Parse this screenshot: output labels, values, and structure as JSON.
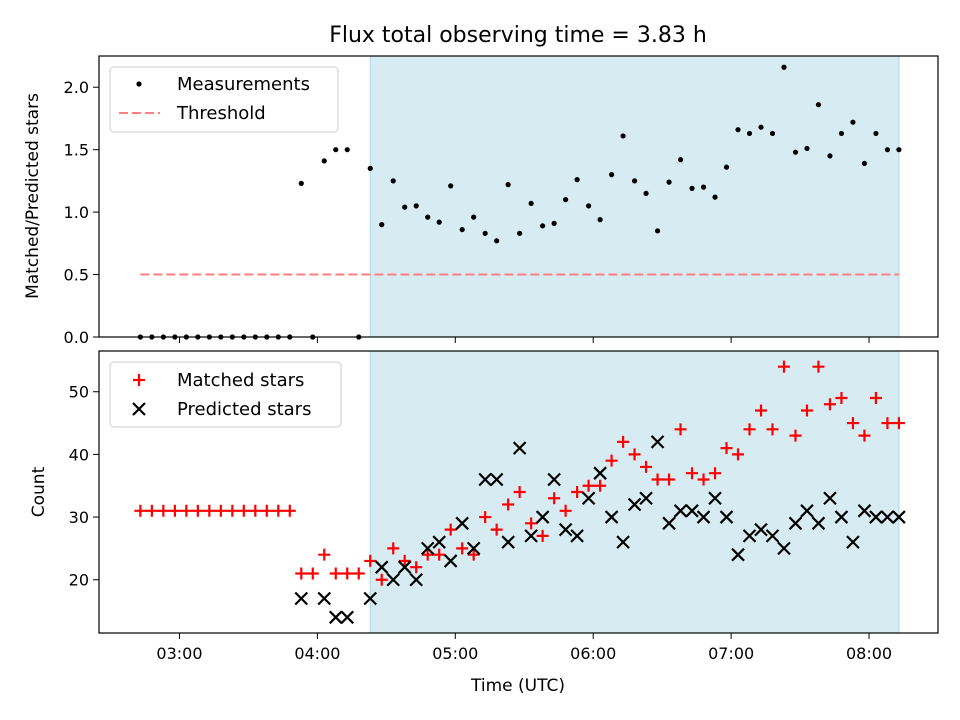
{
  "chart_data": [
    {
      "type": "scatter",
      "title": "Flux total observing time = 3.83 h",
      "xlabel": "",
      "ylabel": "Matched/Predicted stars",
      "xlim": [
        "02:25",
        "08:30"
      ],
      "ylim": [
        0,
        2.25
      ],
      "yticks": [
        "0.0",
        "0.5",
        "1.0",
        "1.5",
        "2.0"
      ],
      "grid": false,
      "legend_position": "top-left",
      "shaded_span": [
        "04:23",
        "08:13"
      ],
      "shade_color": "#add8e6",
      "series": [
        {
          "name": "Measurements",
          "marker": "dot",
          "color": "#000000",
          "points": [
            [
              "02:43",
              0.0
            ],
            [
              "02:48",
              0.0
            ],
            [
              "02:53",
              0.0
            ],
            [
              "02:58",
              0.0
            ],
            [
              "03:03",
              0.0
            ],
            [
              "03:08",
              0.0
            ],
            [
              "03:13",
              0.0
            ],
            [
              "03:18",
              0.0
            ],
            [
              "03:23",
              0.0
            ],
            [
              "03:28",
              0.0
            ],
            [
              "03:33",
              0.0
            ],
            [
              "03:38",
              0.0
            ],
            [
              "03:43",
              0.0
            ],
            [
              "03:48",
              0.0
            ],
            [
              "03:53",
              1.23
            ],
            [
              "03:58",
              0.0
            ],
            [
              "04:03",
              1.41
            ],
            [
              "04:08",
              1.5
            ],
            [
              "04:13",
              1.5
            ],
            [
              "04:18",
              0.0
            ],
            [
              "04:23",
              1.35
            ],
            [
              "04:28",
              0.9
            ],
            [
              "04:33",
              1.25
            ],
            [
              "04:38",
              1.04
            ],
            [
              "04:43",
              1.05
            ],
            [
              "04:48",
              0.96
            ],
            [
              "04:53",
              0.92
            ],
            [
              "04:58",
              1.21
            ],
            [
              "05:03",
              0.86
            ],
            [
              "05:08",
              0.96
            ],
            [
              "05:13",
              0.83
            ],
            [
              "05:18",
              0.77
            ],
            [
              "05:23",
              1.22
            ],
            [
              "05:28",
              0.83
            ],
            [
              "05:33",
              1.07
            ],
            [
              "05:38",
              0.89
            ],
            [
              "05:43",
              0.91
            ],
            [
              "05:48",
              1.1
            ],
            [
              "05:53",
              1.26
            ],
            [
              "05:58",
              1.05
            ],
            [
              "06:03",
              0.94
            ],
            [
              "06:08",
              1.3
            ],
            [
              "06:13",
              1.61
            ],
            [
              "06:18",
              1.25
            ],
            [
              "06:23",
              1.15
            ],
            [
              "06:28",
              0.85
            ],
            [
              "06:33",
              1.24
            ],
            [
              "06:38",
              1.42
            ],
            [
              "06:43",
              1.19
            ],
            [
              "06:48",
              1.2
            ],
            [
              "06:53",
              1.12
            ],
            [
              "06:58",
              1.36
            ],
            [
              "07:03",
              1.66
            ],
            [
              "07:08",
              1.63
            ],
            [
              "07:13",
              1.68
            ],
            [
              "07:18",
              1.63
            ],
            [
              "07:23",
              2.16
            ],
            [
              "07:28",
              1.48
            ],
            [
              "07:33",
              1.51
            ],
            [
              "07:38",
              1.86
            ],
            [
              "07:43",
              1.45
            ],
            [
              "07:48",
              1.63
            ],
            [
              "07:53",
              1.72
            ],
            [
              "07:58",
              1.39
            ],
            [
              "08:03",
              1.63
            ],
            [
              "08:08",
              1.5
            ],
            [
              "08:13",
              1.5
            ]
          ]
        },
        {
          "name": "Threshold",
          "marker": "dashed-line",
          "color": "#ff7f7f",
          "points": [
            [
              "02:43",
              0.5
            ],
            [
              "08:13",
              0.5
            ]
          ]
        }
      ]
    },
    {
      "type": "scatter",
      "title": "",
      "xlabel": "Time (UTC)",
      "ylabel": "Count",
      "xlim": [
        "02:25",
        "08:30"
      ],
      "ylim": [
        11.5,
        56.5
      ],
      "yticks": [
        "20",
        "30",
        "40",
        "50"
      ],
      "xticks": [
        "03:00",
        "04:00",
        "05:00",
        "06:00",
        "07:00",
        "08:00"
      ],
      "grid": false,
      "legend_position": "top-left",
      "shaded_span": [
        "04:23",
        "08:13"
      ],
      "shade_color": "#add8e6",
      "series": [
        {
          "name": "Matched stars",
          "marker": "plus",
          "color": "#ff0000",
          "points": [
            [
              "02:43",
              31
            ],
            [
              "02:48",
              31
            ],
            [
              "02:53",
              31
            ],
            [
              "02:58",
              31
            ],
            [
              "03:03",
              31
            ],
            [
              "03:08",
              31
            ],
            [
              "03:13",
              31
            ],
            [
              "03:18",
              31
            ],
            [
              "03:23",
              31
            ],
            [
              "03:28",
              31
            ],
            [
              "03:33",
              31
            ],
            [
              "03:38",
              31
            ],
            [
              "03:43",
              31
            ],
            [
              "03:48",
              31
            ],
            [
              "03:53",
              21
            ],
            [
              "03:58",
              21
            ],
            [
              "04:03",
              24
            ],
            [
              "04:08",
              21
            ],
            [
              "04:13",
              21
            ],
            [
              "04:18",
              21
            ],
            [
              "04:23",
              23
            ],
            [
              "04:28",
              20
            ],
            [
              "04:33",
              25
            ],
            [
              "04:38",
              23
            ],
            [
              "04:43",
              22
            ],
            [
              "04:48",
              24
            ],
            [
              "04:53",
              24
            ],
            [
              "04:58",
              28
            ],
            [
              "05:03",
              25
            ],
            [
              "05:08",
              24
            ],
            [
              "05:13",
              30
            ],
            [
              "05:18",
              28
            ],
            [
              "05:23",
              32
            ],
            [
              "05:28",
              34
            ],
            [
              "05:33",
              29
            ],
            [
              "05:38",
              27
            ],
            [
              "05:43",
              33
            ],
            [
              "05:48",
              31
            ],
            [
              "05:53",
              34
            ],
            [
              "05:58",
              35
            ],
            [
              "06:03",
              35
            ],
            [
              "06:08",
              39
            ],
            [
              "06:13",
              42
            ],
            [
              "06:18",
              40
            ],
            [
              "06:23",
              38
            ],
            [
              "06:28",
              36
            ],
            [
              "06:33",
              36
            ],
            [
              "06:38",
              44
            ],
            [
              "06:43",
              37
            ],
            [
              "06:48",
              36
            ],
            [
              "06:53",
              37
            ],
            [
              "06:58",
              41
            ],
            [
              "07:03",
              40
            ],
            [
              "07:08",
              44
            ],
            [
              "07:13",
              47
            ],
            [
              "07:18",
              44
            ],
            [
              "07:23",
              54
            ],
            [
              "07:28",
              43
            ],
            [
              "07:33",
              47
            ],
            [
              "07:38",
              54
            ],
            [
              "07:43",
              48
            ],
            [
              "07:48",
              49
            ],
            [
              "07:53",
              45
            ],
            [
              "07:58",
              43
            ],
            [
              "08:03",
              49
            ],
            [
              "08:08",
              45
            ],
            [
              "08:13",
              45
            ]
          ]
        },
        {
          "name": "Predicted stars",
          "marker": "x",
          "color": "#000000",
          "points": [
            [
              "03:53",
              17
            ],
            [
              "04:03",
              17
            ],
            [
              "04:08",
              14
            ],
            [
              "04:13",
              14
            ],
            [
              "04:23",
              17
            ],
            [
              "04:28",
              22
            ],
            [
              "04:33",
              20
            ],
            [
              "04:38",
              22
            ],
            [
              "04:43",
              20
            ],
            [
              "04:48",
              25
            ],
            [
              "04:53",
              26
            ],
            [
              "04:58",
              23
            ],
            [
              "05:03",
              29
            ],
            [
              "05:08",
              25
            ],
            [
              "05:13",
              36
            ],
            [
              "05:18",
              36
            ],
            [
              "05:23",
              26
            ],
            [
              "05:28",
              41
            ],
            [
              "05:33",
              27
            ],
            [
              "05:38",
              30
            ],
            [
              "05:43",
              36
            ],
            [
              "05:48",
              28
            ],
            [
              "05:53",
              27
            ],
            [
              "05:58",
              33
            ],
            [
              "06:03",
              37
            ],
            [
              "06:08",
              30
            ],
            [
              "06:13",
              26
            ],
            [
              "06:18",
              32
            ],
            [
              "06:23",
              33
            ],
            [
              "06:28",
              42
            ],
            [
              "06:33",
              29
            ],
            [
              "06:38",
              31
            ],
            [
              "06:43",
              31
            ],
            [
              "06:48",
              30
            ],
            [
              "06:53",
              33
            ],
            [
              "06:58",
              30
            ],
            [
              "07:03",
              24
            ],
            [
              "07:08",
              27
            ],
            [
              "07:13",
              28
            ],
            [
              "07:18",
              27
            ],
            [
              "07:23",
              25
            ],
            [
              "07:28",
              29
            ],
            [
              "07:33",
              31
            ],
            [
              "07:38",
              29
            ],
            [
              "07:43",
              33
            ],
            [
              "07:48",
              30
            ],
            [
              "07:53",
              26
            ],
            [
              "07:58",
              31
            ],
            [
              "08:03",
              30
            ],
            [
              "08:08",
              30
            ],
            [
              "08:13",
              30
            ]
          ]
        }
      ]
    }
  ]
}
